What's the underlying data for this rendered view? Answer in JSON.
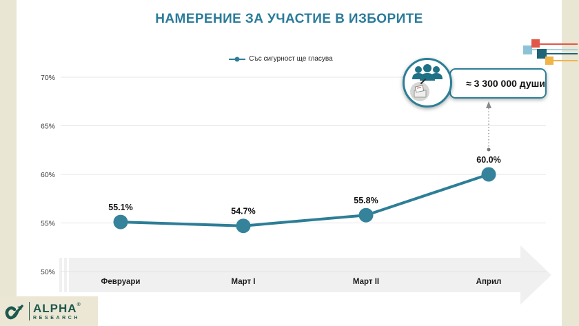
{
  "title": "НАМЕРЕНИЕ ЗА УЧАСТИЕ В ИЗБОРИТЕ",
  "legend": {
    "label": "Със сигурност ще гласува"
  },
  "annotation": {
    "text": "≈ 3 300 000 души"
  },
  "logo": {
    "name": "ALPHA",
    "reg": "®",
    "sub": "RESEARCH"
  },
  "colors": {
    "title_teal": "#2b7b9b",
    "line_teal": "#2d7e96",
    "point_teal": "#35839b",
    "grid_gray": "#e5e5e5",
    "arrow_gray": "#f0f0f0",
    "beige": "#e9e6d3",
    "logo_green": "#1d584e",
    "deco_red": "#e25549",
    "deco_light_blue": "#8cc3d6",
    "deco_dark_teal": "#1f6478",
    "deco_yellow": "#f0b449"
  },
  "chart_data": {
    "type": "line",
    "title": "НАМЕРЕНИЕ ЗА УЧАСТИЕ В ИЗБОРИТЕ",
    "categories": [
      "Февруари",
      "Март I",
      "Март II",
      "Април"
    ],
    "series": [
      {
        "name": "Със сигурност ще гласува",
        "values": [
          55.1,
          54.7,
          55.8,
          60.0
        ]
      }
    ],
    "data_labels": [
      "55.1%",
      "54.7%",
      "55.8%",
      "60.0%"
    ],
    "ylim": [
      50,
      70
    ],
    "ytick_values": [
      50,
      55,
      60,
      65,
      70
    ],
    "ytick_labels": [
      "50%",
      "55%",
      "60%",
      "65%",
      "70%"
    ],
    "xlabel": "",
    "ylabel": "",
    "grid": true,
    "legend_position": "top-center",
    "annotation": "≈ 3 300 000 души"
  }
}
